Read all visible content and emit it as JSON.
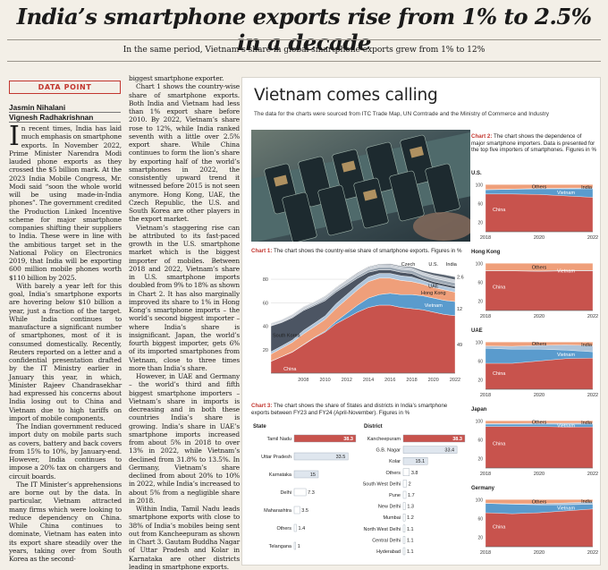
{
  "headline": "India’s smartphone exports rise from 1% to 2.5% in a decade",
  "subhead": "In the same period, Vietnam’s share in global smartphone exports grew from 1% to 12%",
  "data_point": "DATA POINT",
  "authors": [
    "Jasmin Nihalani",
    "Vignesh Radhakrishnan"
  ],
  "col1": {
    "dropcap": "I",
    "p1": "n recent times, India has laid much emphasis on smartphone exports. In November 2022, Prime Minister Narendra Modi lauded phone exports as they crossed the $5 billion mark. At the 2023 India Mobile Congress, Mr. Modi said “soon the whole world will be using made-in-India phones”. The government credited the Production Linked Incentive scheme for major smartphone companies shifting their suppliers to India. These were in line with the ambitious target set in the National Policy on Electronics 2019, that India will be exporting 600 million mobile phones worth $110 billion by 2025.",
    "p2": "With barely a year left for this goal, India’s smartphone exports are hovering below $10 billion a year, just a fraction of the target. While India continues to manufacture a significant number of smartphones, most of it is consumed domestically. Recently, Reuters reported on a letter and a confidential presentation drafted by the IT Ministry earlier in January this year, in which, Minister Rajeev Chandrasekhar had expressed his concerns about India losing out to China and Vietnam due to high tariffs on import of mobile components.",
    "p3": "The Indian government reduced import duty on mobile parts such as covers, battery and back covers from 15% to 10%, by January-end. However, India continues to impose a 20% tax on chargers and circuit boards.",
    "p4": "The IT Minister’s apprehensions are borne out by the data. In particular, Vietnam attracted many firms which were looking to reduce dependency on China. While China continues to dominate, Vietnam has eaten into its export share steadily over the years, taking over from South Korea as the second-"
  },
  "col2": {
    "p1": "biggest smartphone exporter.",
    "p2": "Chart 1 shows the country-wise share of smartphone exports. Both India and Vietnam had less than 1% export share before 2010. By 2022, Vietnam’s share rose to 12%, while India ranked seventh with a little over 2.5% export share. While China continues to form the lion’s share by exporting half of the world’s smartphones in 2022, the consistently upward trend it witnessed before 2015 is not seen anymore. Hong Kong, UAE, the Czech Republic, the U.S. and South Korea are other players in the export market.",
    "p3": "Vietnam’s staggering rise can be attributed to its fast-paced growth in the U.S. smartphone market which is the biggest importer of mobiles. Between 2018 and 2022, Vietnam’s share in U.S. smartphone imports doubled from 9% to 18% as shown in Chart 2. It has also marginally improved its share to 1% in Hong Kong’s smartphone imports – the world’s second biggest importer – where India’s share is insignificant. Japan, the world’s fourth biggest importer, gets 6% of its imported smartphones from Vietnam, close to three times more than India’s share.",
    "p4": "However, in UAE and Germany – the world’s third and fifth biggest smartphone importers –Vietnam’s share in imports is decreasing and in both these countries India’s share is growing. India’s share in UAE’s smartphone imports increased from about 5% in 2018 to over 13% in 2022, while Vietnam’s declined from 31.8% to 13.5%. In Germany, Vietnam’s share declined from about 20% to 10% in 2022, while India’s increased to about 5% from a negligible share in 2018.",
    "p5": "Within India, Tamil Nadu leads smartphone exports with close to 38% of India’s mobiles being sent out from Kancheepuram as shown in Chart 3. Gautam Buddha Nagar of Uttar Pradesh and Kolar in Karnataka are other districts leading in smartphone exports."
  },
  "graphic": {
    "title": "Vietnam comes calling",
    "source": "The data for the charts were sourced from ITC Trade Map, UN Comtrade and the Ministry of Commerce and Industry",
    "chart1_caption_label": "Chart 1:",
    "chart1_caption": " The chart shows the country-wise share of smartphone exports. Figures in %",
    "chart2_caption_label": "Chart 2:",
    "chart2_caption": " The chart shows the dependence of major smartphone importers. Data is presented for the top five importers of smartphones. Figures in %",
    "chart3_caption_label": "Chart 3:",
    "chart3_caption": " The chart shows the share of States and districts in India’s smartphone exports between FY23 and FY24 (April-November). Figures in %"
  },
  "chart_data": [
    {
      "type": "area",
      "id": "chart1",
      "x": [
        2005,
        2006,
        2007,
        2008,
        2009,
        2010,
        2011,
        2012,
        2013,
        2014,
        2015,
        2016,
        2017,
        2018,
        2019,
        2020,
        2021,
        2022
      ],
      "x_ticks": [
        "2008",
        "2010",
        "2012",
        "2014",
        "2016",
        "2018",
        "2020",
        "2022"
      ],
      "y_ticks": [
        "20",
        "40",
        "60",
        "80"
      ],
      "ylim": [
        0,
        90
      ],
      "stacked": true,
      "series": [
        {
          "name": "China",
          "color": "#c8534d",
          "values": [
            10,
            14,
            18,
            24,
            30,
            35,
            42,
            47,
            52,
            56,
            58,
            58,
            56,
            55,
            54,
            52,
            50,
            49
          ]
        },
        {
          "name": "Vietnam",
          "color": "#5a9bcd",
          "values": [
            0.2,
            0.2,
            0.3,
            0.4,
            0.5,
            0.8,
            2,
            4,
            6,
            8,
            9,
            10,
            11,
            12,
            12,
            12,
            12,
            12
          ]
        },
        {
          "name": "Hong Kong",
          "color": "#ef9f7a",
          "values": [
            6,
            7,
            8,
            9,
            9,
            10,
            11,
            12,
            13,
            14,
            14,
            13,
            12,
            11,
            10,
            9,
            9,
            8
          ]
        },
        {
          "name": "UAE",
          "color": "#aec4da",
          "values": [
            2,
            2,
            2,
            3,
            3,
            3,
            4,
            4,
            4,
            4,
            4,
            4,
            4,
            4,
            3,
            3,
            3,
            3
          ]
        },
        {
          "name": "South Korea",
          "color": "#4c5563",
          "values": [
            22,
            20,
            19,
            17,
            15,
            13,
            10,
            8,
            6,
            4,
            3,
            3,
            3,
            3,
            2,
            2,
            2,
            2
          ]
        },
        {
          "name": "Czech",
          "color": "#9ca7b3",
          "values": [
            0.5,
            0.6,
            0.8,
            1,
            1.2,
            1.5,
            1.6,
            1.8,
            2,
            2.2,
            2.4,
            2.5,
            2.5,
            2.6,
            2.8,
            3,
            3,
            3
          ]
        },
        {
          "name": "U.S.",
          "color": "#c8ced6",
          "values": [
            1.5,
            1.6,
            1.7,
            1.8,
            1.8,
            1.9,
            2,
            2,
            2,
            2,
            2,
            2,
            2,
            2,
            2.2,
            2.4,
            2.5,
            2.5
          ]
        },
        {
          "name": "India",
          "color": "#5c6673",
          "values": [
            0.3,
            0.3,
            0.3,
            0.4,
            0.4,
            0.5,
            0.5,
            0.5,
            0.6,
            0.6,
            0.6,
            0.7,
            0.8,
            1,
            1.5,
            2,
            2.4,
            2.6
          ]
        }
      ],
      "end_labels": [
        "2.6",
        "12",
        "49"
      ]
    },
    {
      "type": "area",
      "id": "chart2",
      "x_ticks": [
        "2018",
        "2020",
        "2022"
      ],
      "y_ticks": [
        "20",
        "60",
        "100"
      ],
      "panels": [
        {
          "country": "U.S.",
          "series": {
            "China": [
              80,
              80,
              79,
              76,
              73
            ],
            "Vietnam": [
              9,
              10,
              12,
              15,
              18
            ],
            "India": [
              0.5,
              0.5,
              1,
              1.5,
              2
            ],
            "Others": [
              10.5,
              9.5,
              8,
              7.5,
              7
            ]
          },
          "labels": [
            "Others",
            "India",
            "Vietnam",
            "China"
          ]
        },
        {
          "country": "Hong Kong",
          "series": {
            "China": [
              84,
              84,
              83,
              84,
              84
            ],
            "Vietnam": [
              0.5,
              0.5,
              0.8,
              1,
              1
            ],
            "Others": [
              15.5,
              15.5,
              16.2,
              15,
              15
            ]
          },
          "labels": [
            "Others",
            "Vietnam",
            "China"
          ]
        },
        {
          "country": "UAE",
          "series": {
            "China": [
              55,
              55,
              60,
              65,
              66
            ],
            "Vietnam": [
              31.8,
              30,
              25,
              18,
              13.5
            ],
            "India": [
              5,
              6,
              8,
              11,
              13
            ],
            "Others": [
              8.2,
              9,
              7,
              6,
              7.5
            ]
          },
          "labels": [
            "Others",
            "India",
            "Vietnam",
            "China"
          ]
        },
        {
          "country": "Japan",
          "series": {
            "China": [
              88,
              88,
              88,
              87,
              87
            ],
            "Vietnam": [
              5,
              5,
              5,
              6,
              6
            ],
            "India": [
              1,
              1.5,
              2,
              2,
              2
            ],
            "Others": [
              6,
              5.5,
              5,
              5,
              5
            ]
          },
          "labels": [
            "Others",
            "India",
            "Vietnam",
            "China"
          ]
        },
        {
          "country": "Germany",
          "series": {
            "China": [
              72,
              70,
              72,
              76,
              80
            ],
            "Vietnam": [
              20,
              20,
              17,
              13,
              10
            ],
            "India": [
              0.2,
              1,
              2,
              4,
              5
            ],
            "Others": [
              7.8,
              9,
              9,
              7,
              5
            ]
          },
          "labels": [
            "Others",
            "India",
            "Vietnam",
            "China"
          ]
        }
      ]
    },
    {
      "type": "bar",
      "id": "chart3-state",
      "title": "State",
      "categories": [
        "Tamil Nadu",
        "Uttar Pradesh",
        "Karnataka",
        "Delhi",
        "Maharashtra",
        "Others",
        "Telangana"
      ],
      "values": [
        38.3,
        33.5,
        15,
        7.3,
        3.5,
        1.4,
        1
      ],
      "xlim": [
        0,
        40
      ]
    },
    {
      "type": "bar",
      "id": "chart3-district",
      "title": "District",
      "categories": [
        "Kancheepuram",
        "G.B. Nagar",
        "Kolar",
        "Others",
        "South West Delhi",
        "Pune",
        "New Delhi",
        "Mumbai",
        "North West Delhi",
        "Central Delhi",
        "Hyderabad"
      ],
      "values": [
        38.3,
        33.4,
        15.1,
        3.8,
        2,
        1.7,
        1.3,
        1.2,
        1.1,
        1.1,
        1.1
      ],
      "xlim": [
        0,
        40
      ]
    }
  ]
}
